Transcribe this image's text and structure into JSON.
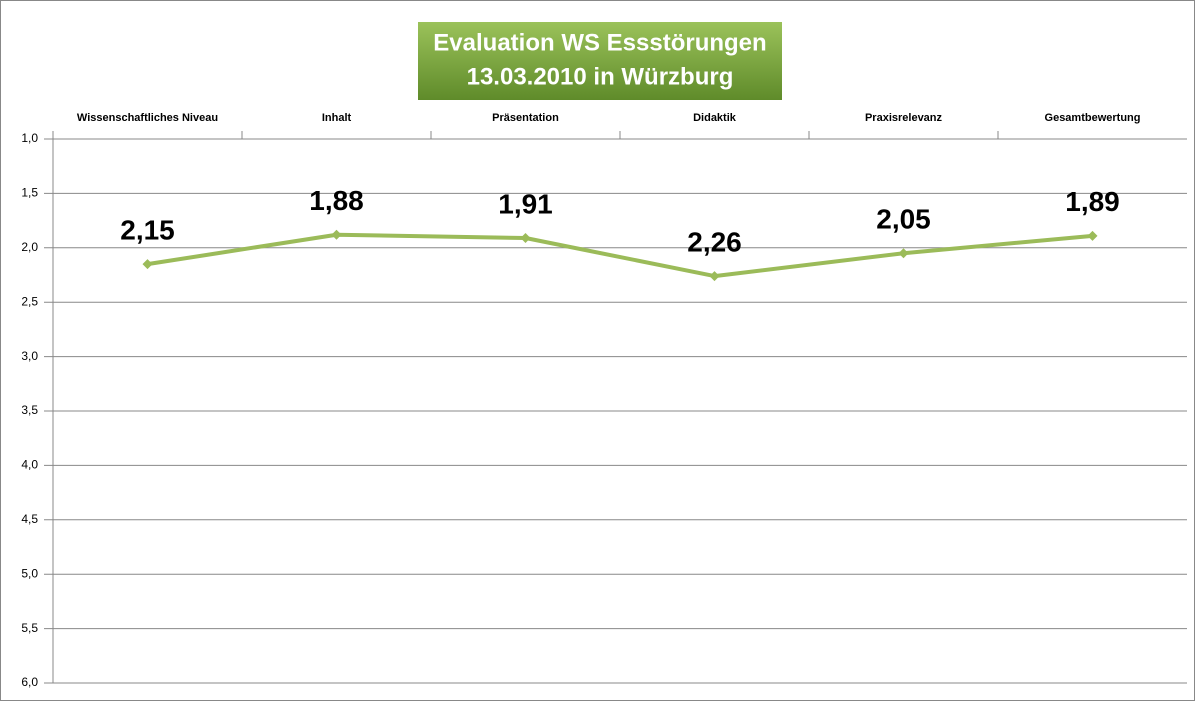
{
  "chart_data": {
    "type": "line",
    "title": [
      "Evaluation WS Essstörungen",
      "13.03.2010 in Würzburg"
    ],
    "categories": [
      "Wissenschaftliches Niveau",
      "Inhalt",
      "Präsentation",
      "Didaktik",
      "Praxisrelevanz",
      "Gesamtbewertung"
    ],
    "series": [
      {
        "color": "#9bbb59",
        "values": [
          2.15,
          1.88,
          1.91,
          2.26,
          2.05,
          1.89
        ],
        "value_labels": [
          "2,15",
          "1,88",
          "1,91",
          "2,26",
          "2,05",
          "1,89"
        ]
      }
    ],
    "ylim": [
      1,
      6
    ],
    "y_inverted": true,
    "yticks": [
      {
        "value": 1,
        "label": "1,0"
      },
      {
        "value": 1.5,
        "label": "1,5"
      },
      {
        "value": 2,
        "label": "2,0"
      },
      {
        "value": 2.5,
        "label": "2,5"
      },
      {
        "value": 3,
        "label": "3,0"
      },
      {
        "value": 3.5,
        "label": "3,5"
      },
      {
        "value": 4,
        "label": "4,0"
      },
      {
        "value": 4.5,
        "label": "4,5"
      },
      {
        "value": 5,
        "label": "5,0"
      },
      {
        "value": 5.5,
        "label": "5,5"
      },
      {
        "value": 6,
        "label": "6,0"
      }
    ],
    "grid": true
  }
}
